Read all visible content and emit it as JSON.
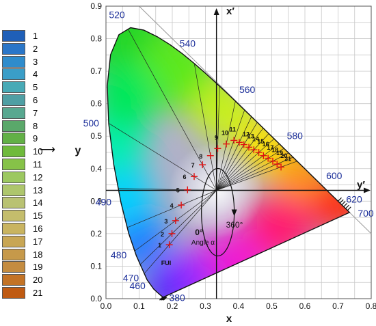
{
  "legend": {
    "items": [
      {
        "label": "1",
        "color": "#1f5fb8"
      },
      {
        "label": "2",
        "color": "#2a76c8"
      },
      {
        "label": "3",
        "color": "#2f8ccc"
      },
      {
        "label": "4",
        "color": "#3a9ec8"
      },
      {
        "label": "5",
        "color": "#48aab6"
      },
      {
        "label": "6",
        "color": "#4f9fa4"
      },
      {
        "label": "7",
        "color": "#58a890"
      },
      {
        "label": "8",
        "color": "#5aa86a"
      },
      {
        "label": "9",
        "color": "#62b046"
      },
      {
        "label": "10",
        "color": "#6fba3c"
      },
      {
        "label": "11",
        "color": "#86c248"
      },
      {
        "label": "12",
        "color": "#9cc860"
      },
      {
        "label": "13",
        "color": "#aec66c"
      },
      {
        "label": "14",
        "color": "#b9c272"
      },
      {
        "label": "15",
        "color": "#c4bd6c"
      },
      {
        "label": "16",
        "color": "#c9b460"
      },
      {
        "label": "17",
        "color": "#c8a654"
      },
      {
        "label": "18",
        "color": "#c6994a"
      },
      {
        "label": "19",
        "color": "#c48c40"
      },
      {
        "label": "20",
        "color": "#c37326"
      },
      {
        "label": "21",
        "color": "#bf5a12"
      }
    ]
  },
  "diagram": {
    "x_axis_label": "x",
    "y_axis_label": "y",
    "x_prime_label": "x′",
    "y_prime_label": "y′",
    "x_ticks": [
      "0.0",
      "0.1",
      "0.2",
      "0.3",
      "0.4",
      "0.5",
      "0.6",
      "0.7",
      "0.8"
    ],
    "y_ticks": [
      "0.0",
      "0.1",
      "0.2",
      "0.3",
      "0.4",
      "0.5",
      "0.6",
      "0.7",
      "0.8",
      "0.9"
    ],
    "x_range": [
      0,
      0.8
    ],
    "y_range": [
      0,
      0.9
    ],
    "white_point": {
      "x": 0.3333,
      "y": 0.3333
    },
    "angle_zero_label": "0°",
    "angle_360_label": "360°",
    "angle_text": "Angle α",
    "fui_label": "FUI",
    "colors": {
      "wavelength_label": "#1c2f9a",
      "marker": "#e01010",
      "grid": "#c8c8c8",
      "plot_frame": "#555555"
    },
    "wavelengths": [
      {
        "label": "380",
        "x": 0.1741,
        "y": 0.005
      },
      {
        "label": "460",
        "x": 0.144,
        "y": 0.0297
      },
      {
        "label": "470",
        "x": 0.1241,
        "y": 0.0578
      },
      {
        "label": "480",
        "x": 0.0913,
        "y": 0.1327
      },
      {
        "label": "490",
        "x": 0.0454,
        "y": 0.295
      },
      {
        "label": "500",
        "x": 0.0082,
        "y": 0.5384
      },
      {
        "label": "520",
        "x": 0.0743,
        "y": 0.8338
      },
      {
        "label": "540",
        "x": 0.2296,
        "y": 0.7543
      },
      {
        "label": "560",
        "x": 0.3731,
        "y": 0.6245
      },
      {
        "label": "580",
        "x": 0.5125,
        "y": 0.4866
      },
      {
        "label": "600",
        "x": 0.627,
        "y": 0.3725
      },
      {
        "label": "620",
        "x": 0.6915,
        "y": 0.3083
      },
      {
        "label": "700",
        "x": 0.7347,
        "y": 0.2653
      }
    ],
    "fui_classes": [
      {
        "label": "1",
        "x": 0.191,
        "y": 0.166
      },
      {
        "label": "2",
        "x": 0.199,
        "y": 0.2
      },
      {
        "label": "3",
        "x": 0.21,
        "y": 0.24
      },
      {
        "label": "4",
        "x": 0.227,
        "y": 0.288
      },
      {
        "label": "5",
        "x": 0.246,
        "y": 0.335
      },
      {
        "label": "6",
        "x": 0.266,
        "y": 0.376
      },
      {
        "label": "7",
        "x": 0.291,
        "y": 0.412
      },
      {
        "label": "8",
        "x": 0.315,
        "y": 0.44
      },
      {
        "label": "9",
        "x": 0.337,
        "y": 0.462
      },
      {
        "label": "10",
        "x": 0.363,
        "y": 0.476
      },
      {
        "label": "11",
        "x": 0.386,
        "y": 0.487
      },
      {
        "label": "12",
        "x": 0.402,
        "y": 0.481
      },
      {
        "label": "13",
        "x": 0.416,
        "y": 0.474
      },
      {
        "label": "14",
        "x": 0.431,
        "y": 0.466
      },
      {
        "label": "15",
        "x": 0.446,
        "y": 0.458
      },
      {
        "label": "16",
        "x": 0.461,
        "y": 0.45
      },
      {
        "label": "17",
        "x": 0.475,
        "y": 0.44
      },
      {
        "label": "18",
        "x": 0.489,
        "y": 0.432
      },
      {
        "label": "19",
        "x": 0.503,
        "y": 0.423
      },
      {
        "label": "20",
        "x": 0.516,
        "y": 0.414
      },
      {
        "label": "21",
        "x": 0.528,
        "y": 0.405
      }
    ]
  }
}
